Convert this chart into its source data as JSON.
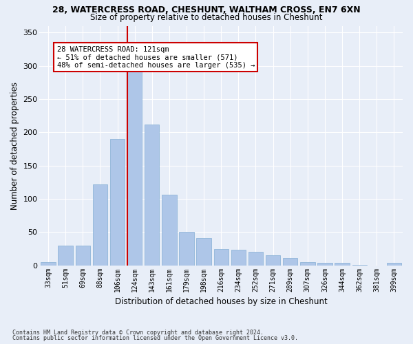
{
  "title_line1": "28, WATERCRESS ROAD, CHESHUNT, WALTHAM CROSS, EN7 6XN",
  "title_line2": "Size of property relative to detached houses in Cheshunt",
  "xlabel": "Distribution of detached houses by size in Cheshunt",
  "ylabel": "Number of detached properties",
  "footnote1": "Contains HM Land Registry data © Crown copyright and database right 2024.",
  "footnote2": "Contains public sector information licensed under the Open Government Licence v3.0.",
  "bar_labels": [
    "33sqm",
    "51sqm",
    "69sqm",
    "88sqm",
    "106sqm",
    "124sqm",
    "143sqm",
    "161sqm",
    "179sqm",
    "198sqm",
    "216sqm",
    "234sqm",
    "252sqm",
    "271sqm",
    "289sqm",
    "307sqm",
    "326sqm",
    "344sqm",
    "362sqm",
    "381sqm",
    "399sqm"
  ],
  "bar_values": [
    5,
    30,
    30,
    122,
    190,
    295,
    212,
    106,
    50,
    41,
    24,
    23,
    20,
    15,
    11,
    5,
    4,
    4,
    1,
    0,
    4
  ],
  "bar_color": "#aec6e8",
  "bar_edgecolor": "#85afd4",
  "background_color": "#e8eef8",
  "grid_color": "#ffffff",
  "annotation_line1": "28 WATERCRESS ROAD: 121sqm",
  "annotation_line2": "← 51% of detached houses are smaller (571)",
  "annotation_line3": "48% of semi-detached houses are larger (535) →",
  "annotation_box_facecolor": "#ffffff",
  "annotation_box_edgecolor": "#cc0000",
  "vline_color": "#cc0000",
  "vline_x": 4.57,
  "ylim": [
    0,
    360
  ],
  "yticks": [
    0,
    50,
    100,
    150,
    200,
    250,
    300,
    350
  ]
}
